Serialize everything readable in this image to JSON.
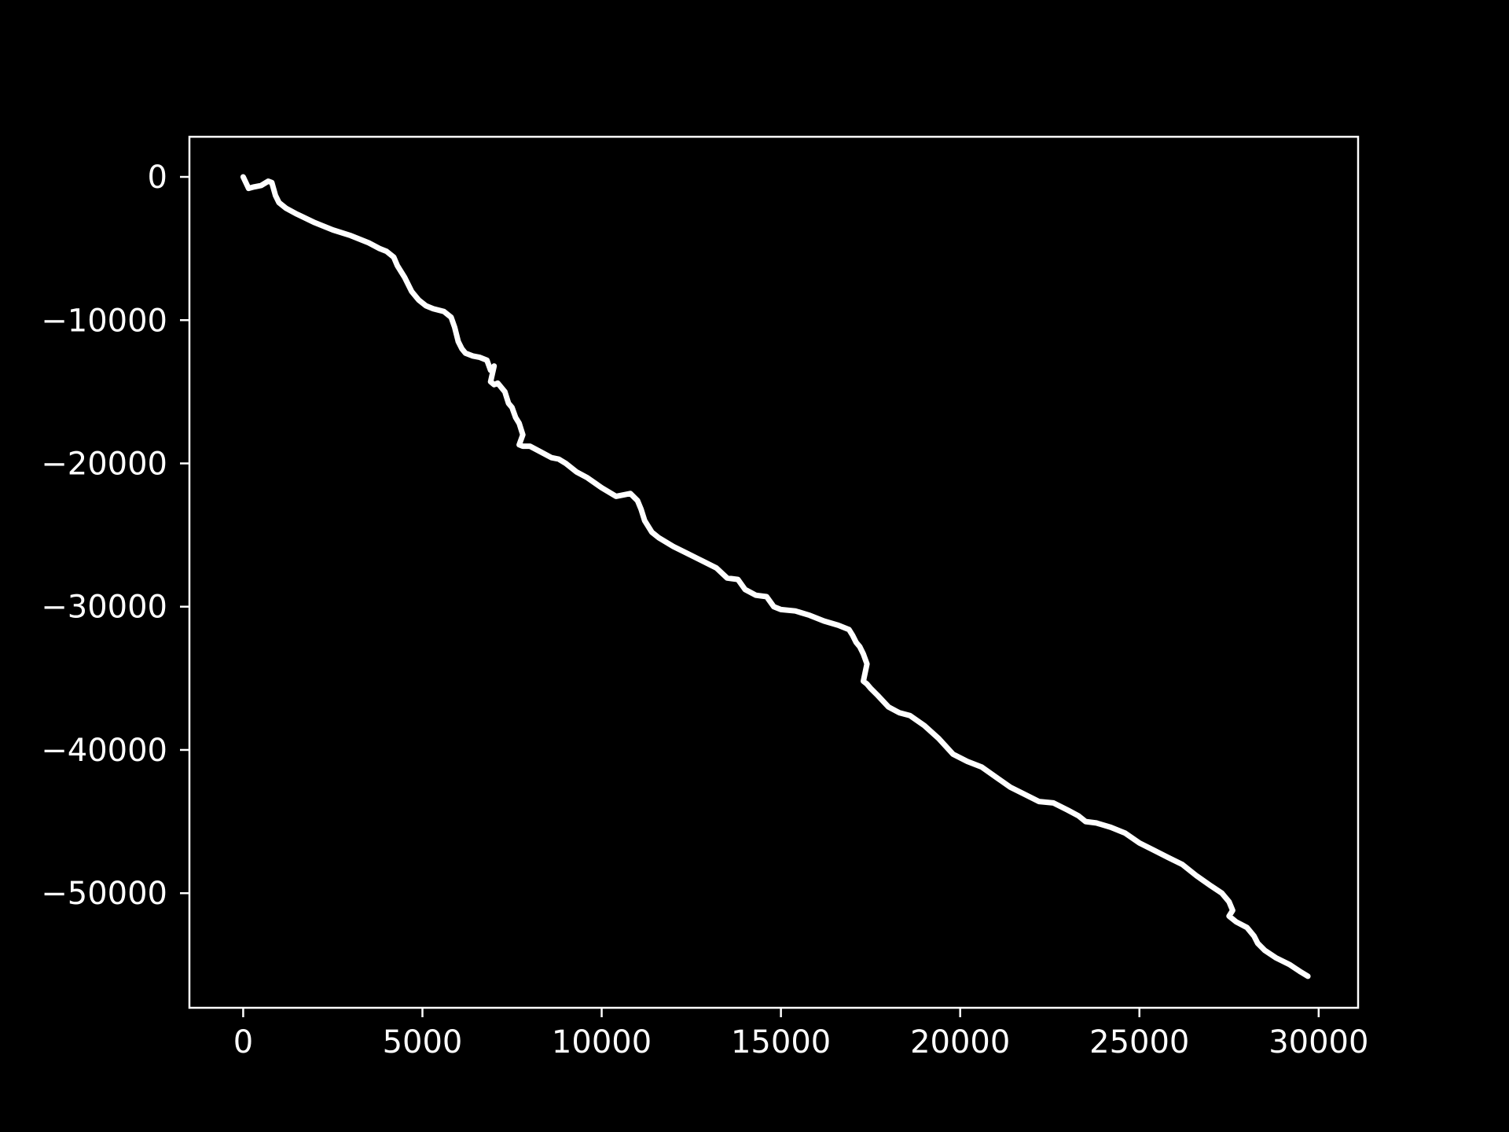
{
  "colors": {
    "background": "#000000",
    "foreground": "#ffffff",
    "series": "#ffffff"
  },
  "chart_data": {
    "type": "line",
    "title": "",
    "xlabel": "",
    "ylabel": "",
    "xlim": [
      -1500,
      31100
    ],
    "ylim": [
      -58000,
      2800
    ],
    "xticks": [
      0,
      5000,
      10000,
      15000,
      20000,
      25000,
      30000
    ],
    "xtick_labels": [
      "0",
      "5000",
      "10000",
      "15000",
      "20000",
      "25000",
      "30000"
    ],
    "yticks": [
      0,
      -10000,
      -20000,
      -30000,
      -40000,
      -50000
    ],
    "ytick_labels": [
      "0",
      "−10000",
      "−20000",
      "−30000",
      "−40000",
      "−50000"
    ],
    "grid": false,
    "legend": "none",
    "series": [
      {
        "x": [
          0,
          150,
          300,
          500,
          700,
          800,
          900,
          1000,
          1200,
          1500,
          2000,
          2500,
          3000,
          3500,
          3800,
          4000,
          4200,
          4300,
          4500,
          4700,
          4900,
          5100,
          5300,
          5600,
          5800,
          5900,
          6000,
          6100,
          6200,
          6300,
          6400,
          6600,
          6800,
          6900,
          7000,
          6900,
          7000,
          7100,
          7300,
          7400,
          7500,
          7600,
          7700,
          7800,
          7700,
          7800,
          8000,
          8300,
          8600,
          8800,
          9000,
          9300,
          9600,
          10000,
          10400,
          10800,
          11000,
          11100,
          11200,
          11400,
          11600,
          12000,
          12400,
          12800,
          13200,
          13500,
          13800,
          14000,
          14300,
          14600,
          14800,
          15000,
          15400,
          15800,
          16200,
          16600,
          16900,
          17000,
          17100,
          17200,
          17300,
          17400,
          17300,
          17400,
          17500,
          17700,
          18000,
          18300,
          18600,
          19000,
          19400,
          19800,
          20200,
          20600,
          21000,
          21400,
          21800,
          22200,
          22600,
          23000,
          23300,
          23500,
          23800,
          24200,
          24600,
          25000,
          25400,
          25800,
          26200,
          26600,
          27000,
          27300,
          27500,
          27600,
          27500,
          27700,
          28000,
          28200,
          28300,
          28500,
          28800,
          29200,
          29500,
          29700
        ],
        "y": [
          0,
          -800,
          -700,
          -600,
          -300,
          -400,
          -1300,
          -1800,
          -2200,
          -2600,
          -3200,
          -3700,
          -4100,
          -4600,
          -5000,
          -5200,
          -5600,
          -6200,
          -7000,
          -8000,
          -8600,
          -9000,
          -9200,
          -9400,
          -9800,
          -10500,
          -11500,
          -12000,
          -12300,
          -12400,
          -12500,
          -12600,
          -12800,
          -13500,
          -13200,
          -14300,
          -14500,
          -14400,
          -15000,
          -15800,
          -16100,
          -16800,
          -17200,
          -18000,
          -18700,
          -18800,
          -18800,
          -19200,
          -19600,
          -19700,
          -20000,
          -20600,
          -21000,
          -21700,
          -22300,
          -22100,
          -22600,
          -23200,
          -24000,
          -24800,
          -25200,
          -25800,
          -26300,
          -26800,
          -27300,
          -28000,
          -28100,
          -28800,
          -29200,
          -29300,
          -30000,
          -30200,
          -30300,
          -30600,
          -31000,
          -31300,
          -31600,
          -32000,
          -32500,
          -32800,
          -33300,
          -34000,
          -35200,
          -35400,
          -35700,
          -36200,
          -37000,
          -37400,
          -37600,
          -38300,
          -39200,
          -40300,
          -40800,
          -41200,
          -41900,
          -42600,
          -43100,
          -43600,
          -43700,
          -44200,
          -44600,
          -45000,
          -45100,
          -45400,
          -45800,
          -46500,
          -47000,
          -47500,
          -48000,
          -48800,
          -49500,
          -50000,
          -50600,
          -51200,
          -51600,
          -52000,
          -52400,
          -53000,
          -53500,
          -54000,
          -54500,
          -55000,
          -55500,
          -55800
        ]
      }
    ]
  }
}
